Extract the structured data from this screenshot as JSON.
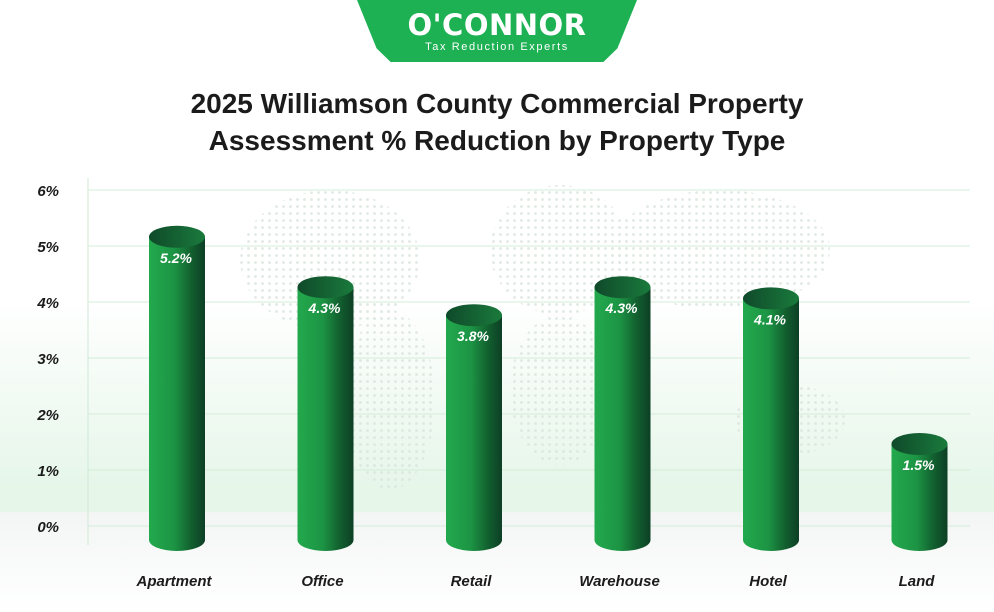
{
  "logo": {
    "name": "O'CONNOR",
    "tagline": "Tax Reduction Experts"
  },
  "chart_data": {
    "type": "bar",
    "title_line1": "2025 Williamson County Commercial Property",
    "title_line2": "Assessment % Reduction by Property Type",
    "categories": [
      "Apartment",
      "Office",
      "Retail",
      "Warehouse",
      "Hotel",
      "Land"
    ],
    "values": [
      5.2,
      4.3,
      3.8,
      4.3,
      4.1,
      1.5
    ],
    "value_labels": [
      "5.2%",
      "4.3%",
      "3.8%",
      "4.3%",
      "4.1%",
      "1.5%"
    ],
    "y_ticks": [
      "0%",
      "1%",
      "2%",
      "3%",
      "4%",
      "5%",
      "6%"
    ],
    "ylim": [
      0,
      6
    ],
    "grid": true,
    "bar_color": "#1fa34a",
    "bar_dark_color": "#0f4a2a"
  }
}
